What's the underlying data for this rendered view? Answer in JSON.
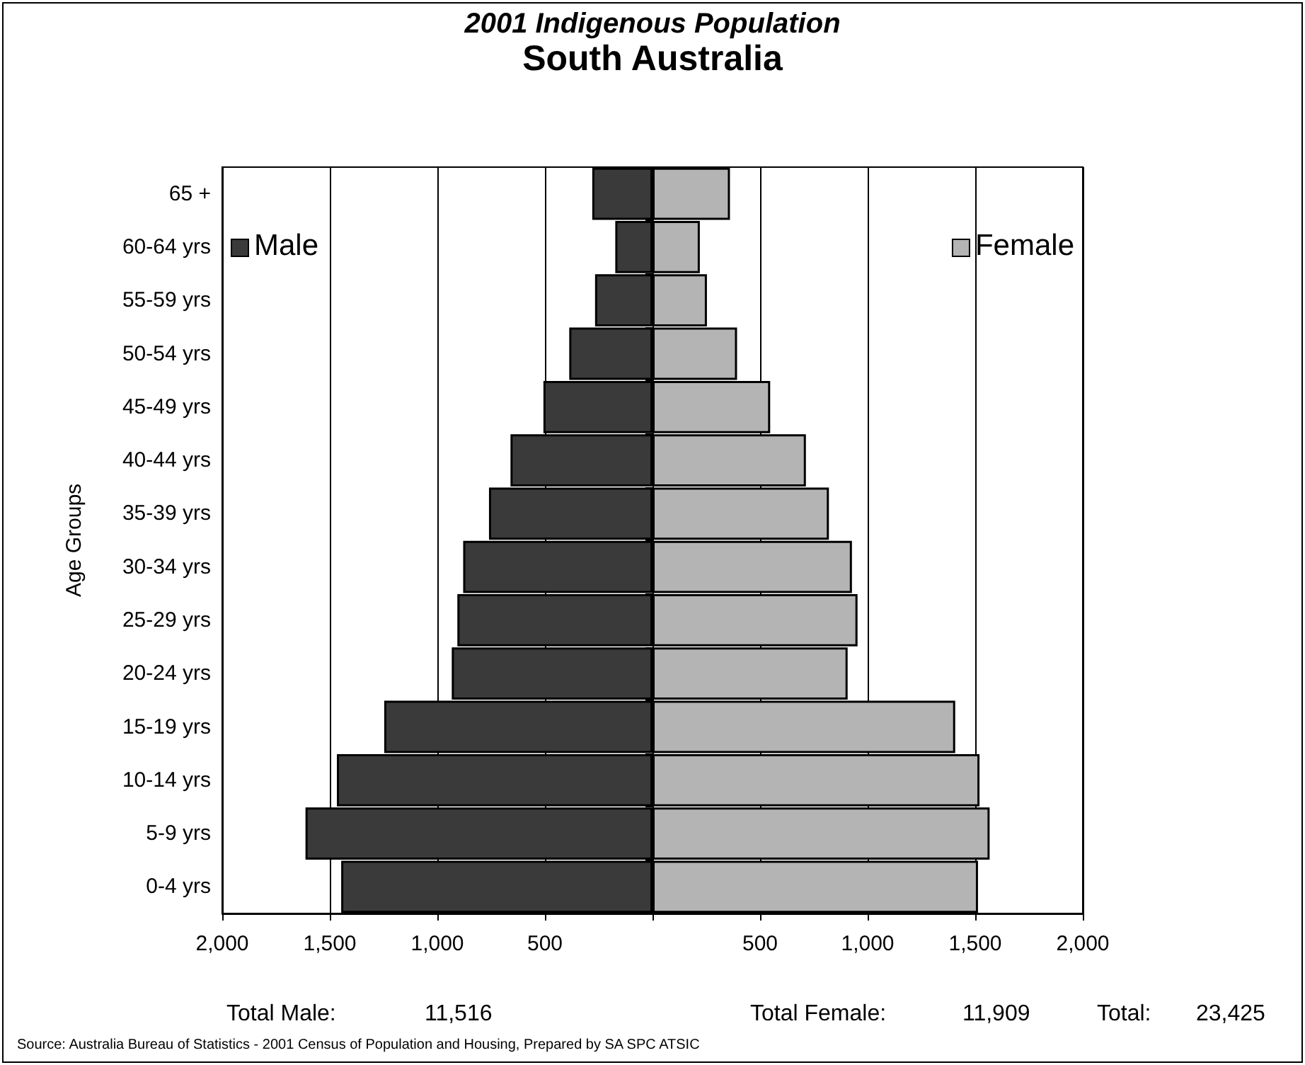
{
  "chart_data": {
    "type": "bar",
    "orientation": "horizontal",
    "stacked": true,
    "title": "2001 Indigenous Population",
    "subtitle": "South Australia",
    "ylabel": "Age Groups",
    "categories": [
      "65 +",
      "60-64 yrs",
      "55-59 yrs",
      "50-54 yrs",
      "45-49 yrs",
      "40-44 yrs",
      "35-39 yrs",
      "30-34 yrs",
      "25-29 yrs",
      "20-24 yrs",
      "15-19 yrs",
      "10-14 yrs",
      "5-9 yrs",
      "0-4 yrs"
    ],
    "series": [
      {
        "name": "Male",
        "color": "#3a3a3a",
        "values": [
          -280,
          -173,
          -267,
          -387,
          -507,
          -660,
          -760,
          -880,
          -907,
          -933,
          -1247,
          -1467,
          -1613,
          -1447
        ]
      },
      {
        "name": "Female",
        "color": "#b4b4b4",
        "values": [
          360,
          220,
          253,
          393,
          547,
          713,
          820,
          927,
          953,
          907,
          1407,
          1520,
          1567,
          1513
        ]
      }
    ],
    "xlim": [
      -2000,
      2000
    ],
    "xticks": [
      {
        "value": -2000,
        "label": "2,000"
      },
      {
        "value": -1500,
        "label": "1,500"
      },
      {
        "value": -1000,
        "label": "1,000"
      },
      {
        "value": -500,
        "label": "500"
      },
      {
        "value": 0,
        "label": null
      },
      {
        "value": 500,
        "label": "500"
      },
      {
        "value": 1000,
        "label": "1,000"
      },
      {
        "value": 1500,
        "label": "1,500"
      },
      {
        "value": 2000,
        "label": "2,000"
      }
    ],
    "grid": "x",
    "legend": "top",
    "annotations": [
      "Total Male:",
      "11,516",
      "Total Female:",
      "11,909",
      "Total:",
      "23,425",
      "Source: Australia Bureau of Statistics - 2001 Census of Population and Housing, Prepared by SA SPC ATSIC"
    ]
  }
}
